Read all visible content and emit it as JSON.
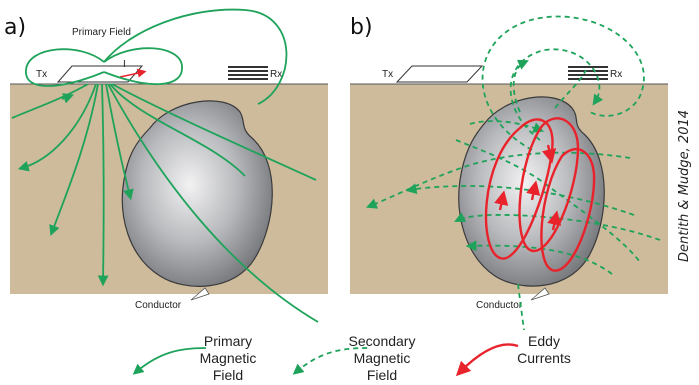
{
  "panels": {
    "a": {
      "label": "a)",
      "primary_field_label": "Primary Field",
      "tx_label": "Tx",
      "rx_label": "Rx",
      "current_label": "I",
      "conductor_label": "Conductor"
    },
    "b": {
      "label": "b)",
      "tx_label": "Tx",
      "rx_label": "Rx",
      "conductor_label": "Conductor"
    }
  },
  "legend": {
    "primary": [
      "Primary",
      "Magnetic",
      "Field"
    ],
    "secondary": [
      "Secondary",
      "Magnetic",
      "Field"
    ],
    "eddy": [
      "Eddy",
      "Currents"
    ]
  },
  "credit": "Dentith & Mudge, 2014",
  "colors": {
    "ground": "#cdbb9c",
    "field": "#1fa35a",
    "eddy_currents": "#e8232b",
    "conductor": "#a9aaad"
  }
}
